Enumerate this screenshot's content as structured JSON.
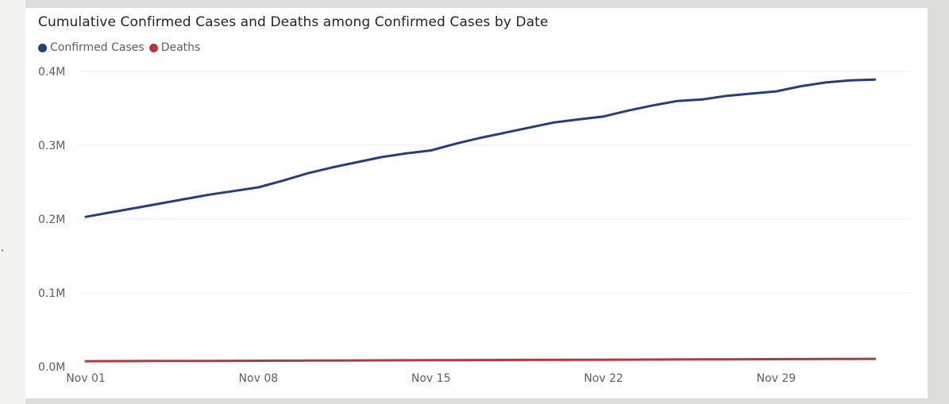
{
  "chart_data": {
    "type": "line",
    "title": "Cumulative Confirmed Cases and Deaths among Confirmed Cases by Date",
    "xlabel": "",
    "ylabel": "",
    "x_range": [
      "Nov 01",
      "Dec 03"
    ],
    "ylim": [
      0,
      400000
    ],
    "y_ticks": [
      {
        "value": 0,
        "label": "0.0M"
      },
      {
        "value": 100000,
        "label": "0.1M"
      },
      {
        "value": 200000,
        "label": "0.2M"
      },
      {
        "value": 300000,
        "label": "0.3M"
      },
      {
        "value": 400000,
        "label": "0.4M"
      }
    ],
    "x_ticks": [
      {
        "day": 0,
        "label": "Nov 01"
      },
      {
        "day": 7,
        "label": "Nov 08"
      },
      {
        "day": 14,
        "label": "Nov 15"
      },
      {
        "day": 21,
        "label": "Nov 22"
      },
      {
        "day": 28,
        "label": "Nov 29"
      }
    ],
    "x": [
      "Nov 01",
      "Nov 02",
      "Nov 03",
      "Nov 04",
      "Nov 05",
      "Nov 06",
      "Nov 07",
      "Nov 08",
      "Nov 09",
      "Nov 10",
      "Nov 11",
      "Nov 12",
      "Nov 13",
      "Nov 14",
      "Nov 15",
      "Nov 16",
      "Nov 17",
      "Nov 18",
      "Nov 19",
      "Nov 20",
      "Nov 21",
      "Nov 22",
      "Nov 23",
      "Nov 24",
      "Nov 25",
      "Nov 26",
      "Nov 27",
      "Nov 28",
      "Nov 29",
      "Nov 30",
      "Dec 01",
      "Dec 02",
      "Dec 03"
    ],
    "series": [
      {
        "name": "Confirmed Cases",
        "color": "#243f7e",
        "values": [
          203000,
          209000,
          215000,
          221000,
          227000,
          233000,
          238000,
          243000,
          252000,
          262000,
          270000,
          277000,
          284000,
          289000,
          293000,
          302000,
          310000,
          317000,
          324000,
          331000,
          335000,
          339000,
          347000,
          354000,
          360000,
          362000,
          367000,
          370000,
          373000,
          380000,
          385000,
          388000,
          389000
        ]
      },
      {
        "name": "Deaths",
        "color": "#b8373a",
        "values": [
          7400,
          7500,
          7600,
          7700,
          7800,
          7900,
          8000,
          8100,
          8200,
          8300,
          8400,
          8500,
          8600,
          8700,
          8800,
          8900,
          9000,
          9100,
          9200,
          9300,
          9400,
          9500,
          9600,
          9700,
          9800,
          9900,
          10000,
          10100,
          10200,
          10300,
          10400,
          10500,
          10600
        ]
      }
    ],
    "grid": true,
    "legend_position": "top-left"
  }
}
